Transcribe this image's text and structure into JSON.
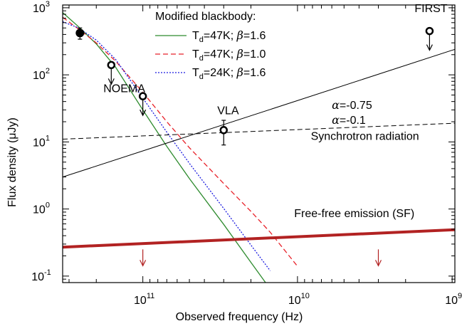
{
  "chart_data": {
    "type": "line",
    "xlabel": "Observed frequency (Hz)",
    "ylabel": "Flux density (μJy)",
    "x_axis": {
      "scale": "log",
      "direction": "decreasing-to-right",
      "range_hz": [
        330000000000.0,
        960000000.0
      ],
      "major_ticks": [
        {
          "value": 100000000000.0,
          "base": "10",
          "exp": "11"
        },
        {
          "value": 10000000000.0,
          "base": "10",
          "exp": "10"
        },
        {
          "value": 1000000000.0,
          "base": "10",
          "exp": "9"
        }
      ]
    },
    "y_axis": {
      "scale": "log",
      "range": [
        0.08,
        1100
      ],
      "major_ticks": [
        {
          "value": 0.1,
          "base": "10",
          "exp": "-1"
        },
        {
          "value": 1,
          "base": "10",
          "exp": "0"
        },
        {
          "value": 10,
          "base": "10",
          "exp": "1"
        },
        {
          "value": 100,
          "base": "10",
          "exp": "2"
        },
        {
          "value": 1000,
          "base": "10",
          "exp": "3"
        }
      ]
    },
    "legend": {
      "title": "Modified blackbody:",
      "placement": "top-center",
      "entries": [
        {
          "T_prefix": "T",
          "T_sub": "d",
          "T_suffix": "=47K; ",
          "beta_sym": "β",
          "beta_val": "=1.6",
          "color": "#2e8b2e",
          "dash": "solid"
        },
        {
          "T_prefix": "T",
          "T_sub": "d",
          "T_suffix": "=47K; ",
          "beta_sym": "β",
          "beta_val": "=1.0",
          "color": "#e8222a",
          "dash": "dashed"
        },
        {
          "T_prefix": "T",
          "T_sub": "d",
          "T_suffix": "=24K; ",
          "beta_sym": "β",
          "beta_val": "=1.6",
          "color": "#1a1ae0",
          "dash": "dotted"
        }
      ]
    },
    "series": [
      {
        "name": "T_d=47K; β=1.6",
        "color": "#2e8b2e",
        "dash": "solid",
        "x": [
          330000000000.0,
          260000000000.0,
          200000000000.0,
          150000000000.0,
          100000000000.0,
          70000000000.0,
          50000000000.0,
          30000000000.0,
          20000000000.0,
          15000000000.0
        ],
        "y": [
          850,
          520,
          290,
          130,
          30,
          8.6,
          2.85,
          0.59,
          0.16,
          0.064
        ]
      },
      {
        "name": "T_d=47K; β=1.0",
        "color": "#e8222a",
        "dash": "dashed",
        "x": [
          330000000000.0,
          260000000000.0,
          200000000000.0,
          150000000000.0,
          100000000000.0,
          70000000000.0,
          50000000000.0,
          30000000000.0,
          20000000000.0,
          15000000000.0,
          10000000000.0
        ],
        "y": [
          720,
          480,
          300,
          160,
          55,
          20,
          8.2,
          2.4,
          0.92,
          0.45,
          0.14
        ]
      },
      {
        "name": "T_d=24K; β=1.6",
        "color": "#1a1ae0",
        "dash": "dotted",
        "x": [
          330000000000.0,
          260000000000.0,
          200000000000.0,
          150000000000.0,
          100000000000.0,
          70000000000.0,
          50000000000.0,
          30000000000.0,
          20000000000.0,
          15000000000.0
        ],
        "y": [
          620,
          500,
          330,
          170,
          45,
          14,
          4.8,
          1.02,
          0.29,
          0.12
        ]
      },
      {
        "name": "α=-0.75",
        "color": "#000000",
        "dash": "solid",
        "width": 1,
        "x": [
          330000000000.0,
          960000000.0
        ],
        "y": [
          3.0,
          240
        ]
      },
      {
        "name": "α=-0.1",
        "color": "#000000",
        "dash": "dashed",
        "width": 1,
        "x": [
          330000000000.0,
          960000000.0
        ],
        "y": [
          11,
          19
        ]
      },
      {
        "name": "Free-free emission (SF)",
        "color": "#b22222",
        "dash": "solid",
        "width": 4,
        "x": [
          330000000000.0,
          960000000.0
        ],
        "y": [
          0.27,
          0.49
        ]
      }
    ],
    "points": [
      {
        "label": "NOEMA",
        "x": 255000000000.0,
        "y": 420,
        "type": "detection",
        "err_lo": 80,
        "err_hi": 80
      },
      {
        "label": "NOEMA",
        "x": 160000000000.0,
        "y": 140,
        "type": "upper_limit"
      },
      {
        "label": "NOEMA",
        "x": 100000000000.0,
        "y": 48,
        "type": "upper_limit"
      },
      {
        "label": "VLA",
        "x": 30000000000.0,
        "y": 15,
        "type": "detection_open",
        "err_lo": 6,
        "err_hi": 6
      },
      {
        "label": "FIRST",
        "x": 1400000000.0,
        "y": 450,
        "type": "upper_limit"
      }
    ],
    "free_free_upper_limits": [
      {
        "x": 100000000000.0,
        "y": 0.25
      },
      {
        "x": 3000000000.0,
        "y": 0.25
      }
    ],
    "annotations": [
      {
        "text": "NOEMA",
        "x": 180000000000.0,
        "y": 55
      },
      {
        "text": "VLA",
        "x": 33000000000.0,
        "y": 26
      },
      {
        "text": "FIRST",
        "x": 1750000000.0,
        "y": 860
      },
      {
        "text": "α=-0.75",
        "x": 6000000000.0,
        "y": 31
      },
      {
        "text": "α=-0.1",
        "x": 6000000000.0,
        "y": 18.5
      },
      {
        "text": "Synchrotron radiation",
        "x": 8200000000.0,
        "y": 10.7
      },
      {
        "text": "Free-free emission (SF)",
        "x": 10500000000.0,
        "y": 0.76
      }
    ]
  }
}
